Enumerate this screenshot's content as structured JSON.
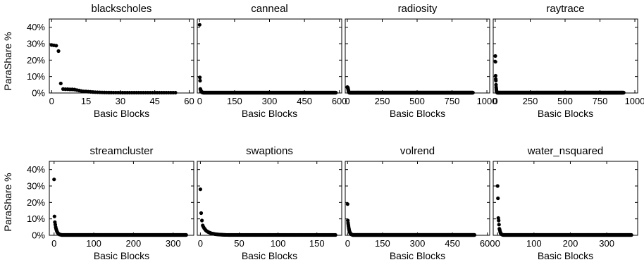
{
  "figure": {
    "ylabel": "ParaShare %",
    "y_ticks": [
      "0%",
      "10%",
      "20%",
      "30%",
      "40%"
    ],
    "xlabel": "Basic Blocks"
  },
  "chart_data": [
    {
      "type": "scatter",
      "title": "blackscholes",
      "xlabel": "Basic Blocks",
      "ylabel": "ParaShare %",
      "xlim": [
        -1,
        62
      ],
      "ylim": [
        0,
        45
      ],
      "x_ticks": [
        0,
        15,
        30,
        45,
        60
      ],
      "y_ticks": [
        0,
        10,
        20,
        30,
        40
      ],
      "points": [
        [
          0,
          29.2
        ],
        [
          1,
          29.0
        ],
        [
          2,
          28.8
        ],
        [
          3,
          25.5
        ],
        [
          4,
          5.8
        ],
        [
          5,
          2.4
        ],
        [
          6,
          2.3
        ],
        [
          7,
          2.3
        ],
        [
          8,
          2.2
        ],
        [
          9,
          2.2
        ],
        [
          10,
          2.1
        ],
        [
          11,
          1.8
        ],
        [
          12,
          1.5
        ],
        [
          13,
          1.2
        ],
        [
          14,
          1.0
        ],
        [
          15,
          0.9
        ],
        [
          16,
          0.8
        ],
        [
          17,
          0.7
        ],
        [
          18,
          0.6
        ],
        [
          19,
          0.5
        ],
        [
          20,
          0.45
        ],
        [
          21,
          0.4
        ],
        [
          22,
          0.35
        ],
        [
          23,
          0.32
        ],
        [
          24,
          0.3
        ],
        [
          25,
          0.28
        ],
        [
          26,
          0.26
        ],
        [
          27,
          0.25
        ],
        [
          28,
          0.24
        ],
        [
          29,
          0.23
        ],
        [
          30,
          0.22
        ],
        [
          31,
          0.21
        ],
        [
          32,
          0.2
        ],
        [
          33,
          0.2
        ],
        [
          34,
          0.2
        ],
        [
          35,
          0.2
        ],
        [
          36,
          0.2
        ],
        [
          37,
          0.2
        ],
        [
          38,
          0.2
        ],
        [
          39,
          0.2
        ],
        [
          40,
          0.2
        ],
        [
          41,
          0.2
        ],
        [
          42,
          0.2
        ],
        [
          43,
          0.2
        ],
        [
          44,
          0.2
        ],
        [
          45,
          0.2
        ],
        [
          46,
          0.2
        ],
        [
          47,
          0.2
        ],
        [
          48,
          0.2
        ],
        [
          49,
          0.2
        ],
        [
          50,
          0.2
        ],
        [
          51,
          0.2
        ],
        [
          52,
          0.2
        ],
        [
          53,
          0.2
        ],
        [
          54,
          0.2
        ]
      ]
    },
    {
      "type": "scatter",
      "title": "canneal",
      "xlabel": "Basic Blocks",
      "ylabel": "ParaShare %",
      "xlim": [
        -10,
        610
      ],
      "ylim": [
        0,
        45
      ],
      "x_ticks": [
        0,
        150,
        300,
        450,
        600
      ],
      "y_ticks": [
        0,
        10,
        20,
        30,
        40
      ],
      "head": [
        41.5,
        9.5,
        7.5,
        2.5,
        2.0,
        1.5,
        1.2,
        1.0,
        0.8,
        0.6,
        0.5,
        0.45,
        0.4,
        0.35,
        0.3
      ],
      "tail_end": 585,
      "tail_value": 0.2
    },
    {
      "type": "scatter",
      "title": "radiosity",
      "xlabel": "Basic Blocks",
      "ylabel": "ParaShare %",
      "xlim": [
        -15,
        1020
      ],
      "ylim": [
        0,
        45
      ],
      "x_ticks": [
        0,
        250,
        500,
        750,
        1000
      ],
      "y_ticks": [
        0,
        10,
        20,
        30,
        40
      ],
      "head": [
        3.6,
        3.5,
        3.4,
        3.3,
        3.0,
        2.7,
        2.2,
        1.6,
        1.2,
        0.9,
        0.6,
        0.5,
        0.4,
        0.3
      ],
      "tail_end": 900,
      "tail_value": 0.2
    },
    {
      "type": "scatter",
      "title": "raytrace",
      "xlabel": "Basic Blocks",
      "ylabel": "ParaShare %",
      "xlim": [
        -15,
        1020
      ],
      "ylim": [
        0,
        45
      ],
      "x_ticks": [
        0,
        250,
        500,
        750,
        1000
      ],
      "y_ticks": [
        0,
        10,
        20,
        30,
        40
      ],
      "head": [
        22.5,
        19.0,
        10.5,
        8.5,
        7.5,
        5.0,
        3.5,
        2.5,
        1.5,
        1.0,
        0.7,
        0.5,
        0.4,
        0.3
      ],
      "tail_end": 920,
      "tail_value": 0.2
    },
    {
      "type": "scatter",
      "title": "streamcluster",
      "xlabel": "Basic Blocks",
      "ylabel": "ParaShare %",
      "xlim": [
        -12,
        352
      ],
      "ylim": [
        0,
        45
      ],
      "x_ticks": [
        0,
        100,
        200,
        300
      ],
      "y_ticks": [
        0,
        10,
        20,
        30,
        40
      ],
      "head": [
        34.0,
        11.5,
        8.0,
        6.5,
        5.0,
        4.0,
        3.2,
        2.5,
        2.0,
        1.5,
        1.2,
        1.0,
        0.8,
        0.6,
        0.5,
        0.45,
        0.4,
        0.35,
        0.3
      ],
      "tail_end": 333,
      "tail_value": 0.2
    },
    {
      "type": "scatter",
      "title": "swaptions",
      "xlabel": "Basic Blocks",
      "ylabel": "ParaShare %",
      "xlim": [
        -4,
        182
      ],
      "ylim": [
        0,
        45
      ],
      "x_ticks": [
        0,
        50,
        100,
        150
      ],
      "y_ticks": [
        0,
        10,
        20,
        30,
        40
      ],
      "head": [
        28.0,
        13.5,
        9.0,
        6.0,
        5.0,
        4.2,
        3.6,
        3.0,
        2.6,
        2.3,
        2.0,
        1.8,
        1.6,
        1.4,
        1.2,
        1.1,
        1.0,
        0.9,
        0.8,
        0.7,
        0.65,
        0.6,
        0.55,
        0.5,
        0.45,
        0.42,
        0.4,
        0.38,
        0.35,
        0.33,
        0.3,
        0.28,
        0.26,
        0.25,
        0.24,
        0.23,
        0.22,
        0.21
      ],
      "tail_end": 174,
      "tail_value": 0.2
    },
    {
      "type": "scatter",
      "title": "volrend",
      "xlabel": "Basic Blocks",
      "ylabel": "ParaShare %",
      "xlim": [
        -10,
        610
      ],
      "ylim": [
        0,
        45
      ],
      "x_ticks": [
        0,
        150,
        300,
        450,
        600
      ],
      "y_ticks": [
        0,
        10,
        20,
        30,
        40
      ],
      "head": [
        19.0,
        9.0,
        7.5,
        6.5,
        5.5,
        4.5,
        3.8,
        3.0,
        2.5,
        2.0,
        1.7,
        1.4,
        1.2,
        1.0,
        0.8,
        0.7,
        0.6,
        0.5,
        0.45,
        0.4,
        0.35,
        0.3
      ],
      "tail_end": 545,
      "tail_value": 0.2
    },
    {
      "type": "scatter",
      "title": "water_nsquared",
      "xlabel": "Basic Blocks",
      "ylabel": "ParaShare %",
      "xlim": [
        -12,
        385
      ],
      "ylim": [
        0,
        45
      ],
      "x_ticks": [
        0,
        100,
        200,
        300
      ],
      "y_ticks": [
        0,
        10,
        20,
        30,
        40
      ],
      "head": [
        30.0,
        22.5,
        10.5,
        9.0,
        6.5,
        4.0,
        3.2,
        2.2,
        1.5,
        1.0,
        0.8,
        0.6,
        0.5,
        0.4,
        0.3
      ],
      "tail_end": 368,
      "tail_value": 0.2
    }
  ]
}
